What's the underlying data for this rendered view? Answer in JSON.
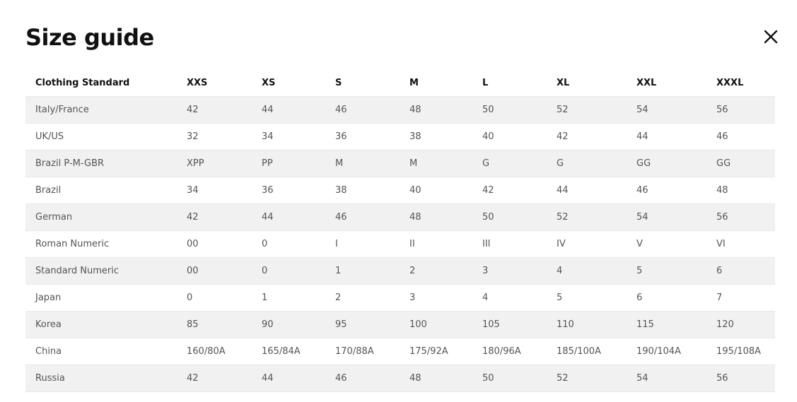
{
  "dialog": {
    "title": "Size guide",
    "close_icon": "close-x-icon"
  },
  "table": {
    "headers": [
      "Clothing Standard",
      "XXS",
      "XS",
      "S",
      "M",
      "L",
      "XL",
      "XXL",
      "XXXL"
    ],
    "rows": [
      [
        "Italy/France",
        "42",
        "44",
        "46",
        "48",
        "50",
        "52",
        "54",
        "56"
      ],
      [
        "UK/US",
        "32",
        "34",
        "36",
        "38",
        "40",
        "42",
        "44",
        "46"
      ],
      [
        "Brazil P-M-GBR",
        "XPP",
        "PP",
        "M",
        "M",
        "G",
        "G",
        "GG",
        "GG"
      ],
      [
        "Brazil",
        "34",
        "36",
        "38",
        "40",
        "42",
        "44",
        "46",
        "48"
      ],
      [
        "German",
        "42",
        "44",
        "46",
        "48",
        "50",
        "52",
        "54",
        "56"
      ],
      [
        "Roman Numeric",
        "00",
        "0",
        "I",
        "II",
        "III",
        "IV",
        "V",
        "VI"
      ],
      [
        "Standard Numeric",
        "00",
        "0",
        "1",
        "2",
        "3",
        "4",
        "5",
        "6"
      ],
      [
        "Japan",
        "0",
        "1",
        "2",
        "3",
        "4",
        "5",
        "6",
        "7"
      ],
      [
        "Korea",
        "85",
        "90",
        "95",
        "100",
        "105",
        "110",
        "115",
        "120"
      ],
      [
        "China",
        "160/80A",
        "165/84A",
        "170/88A",
        "175/92A",
        "180/96A",
        "185/100A",
        "190/104A",
        "195/108A"
      ],
      [
        "Russia",
        "42",
        "44",
        "46",
        "48",
        "50",
        "52",
        "54",
        "56"
      ]
    ]
  }
}
